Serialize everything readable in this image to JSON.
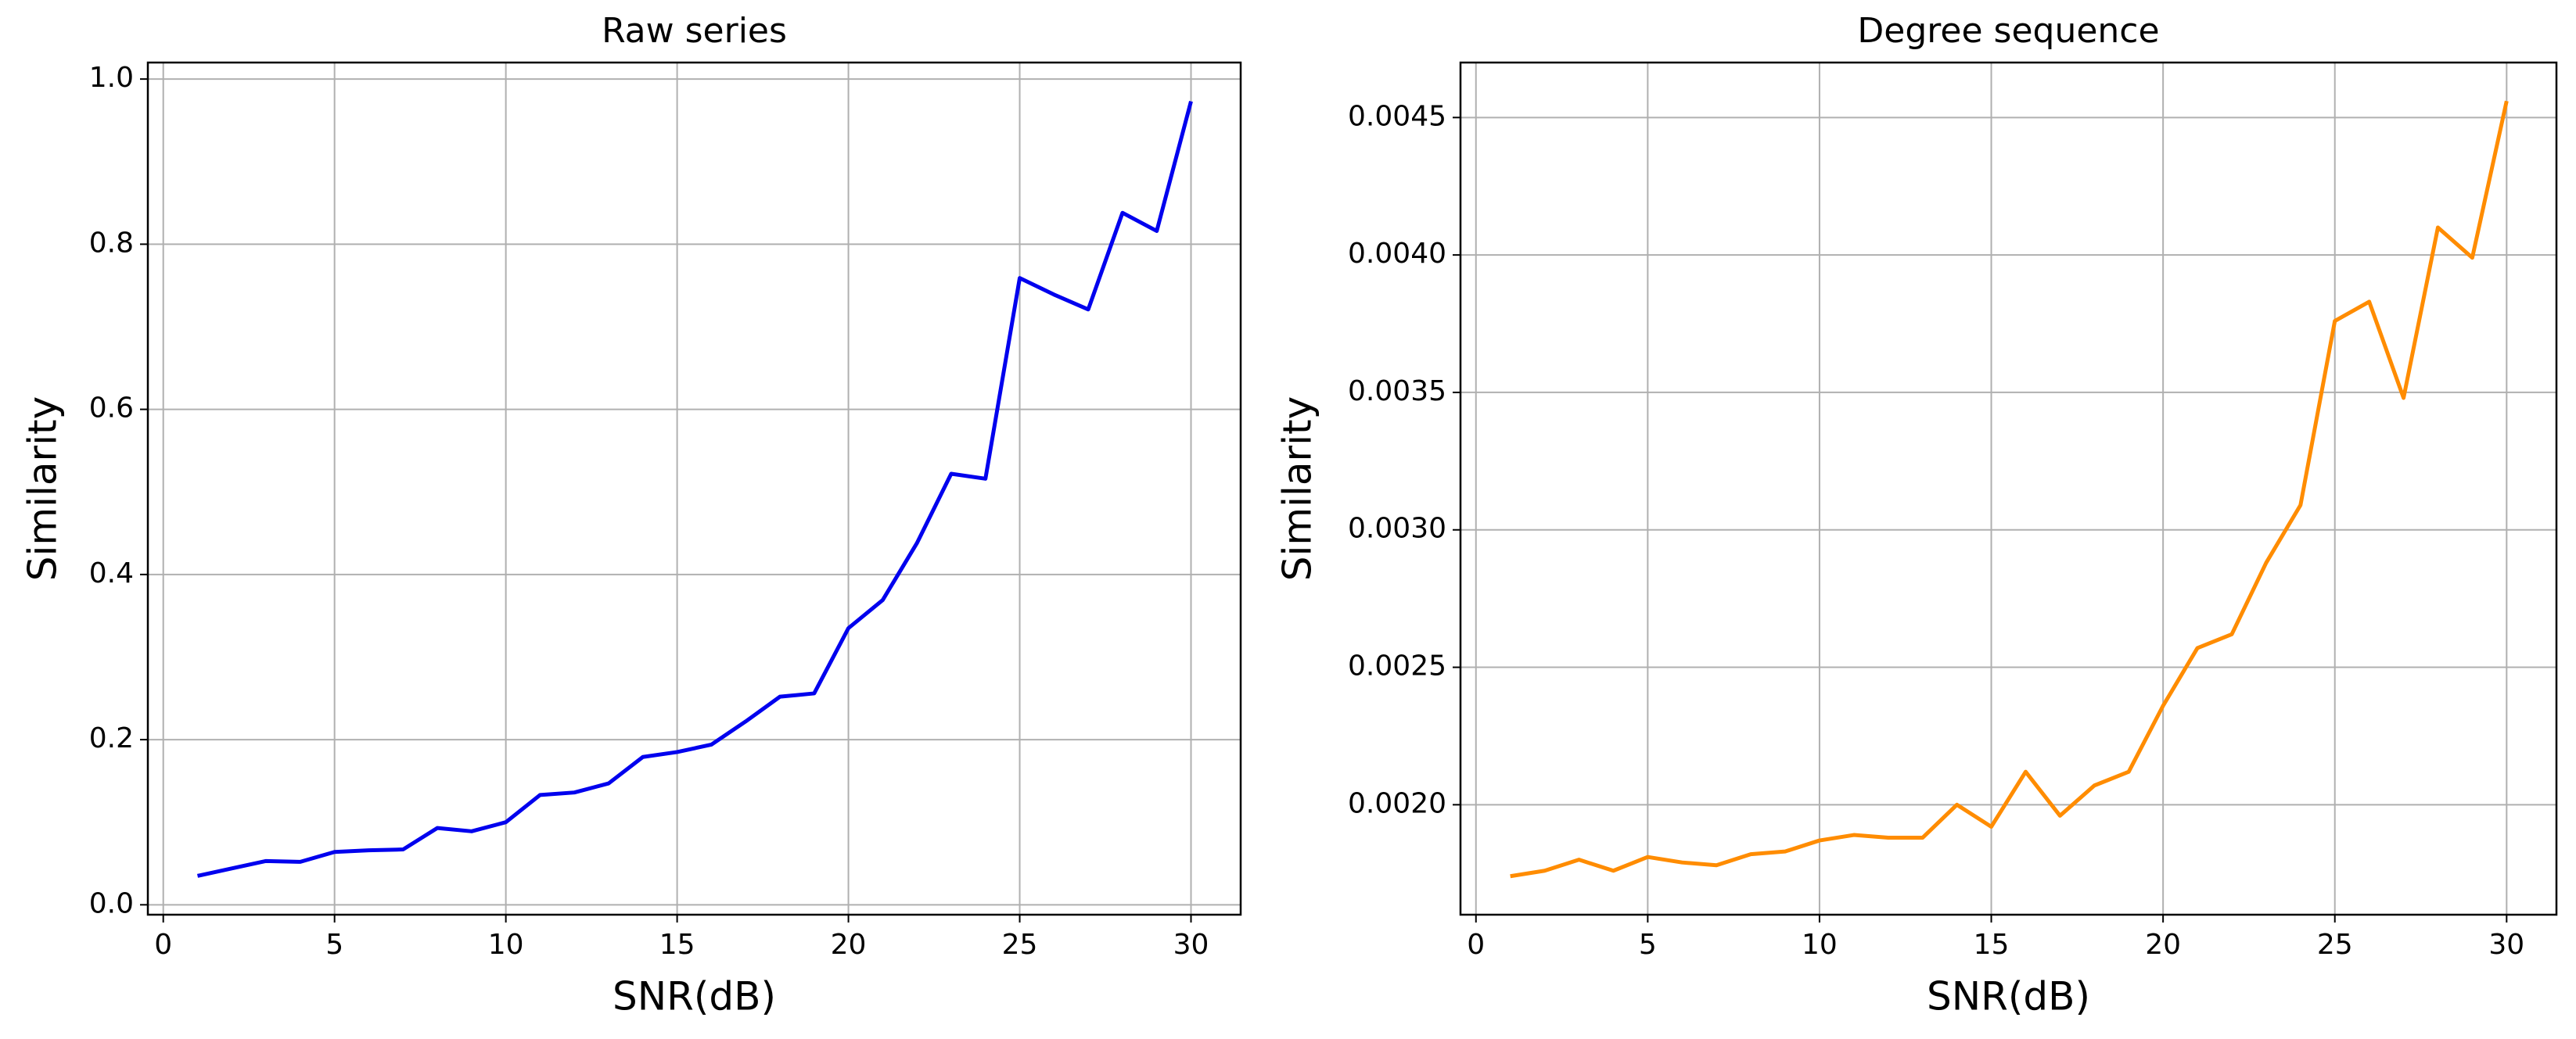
{
  "chart_data": [
    {
      "type": "line",
      "title": "Raw series",
      "x_label": "SNR(dB)",
      "y_label": "Similarity",
      "color": "#0000ee",
      "grid": true,
      "x": [
        1,
        2,
        3,
        4,
        5,
        6,
        7,
        8,
        9,
        10,
        11,
        12,
        13,
        14,
        15,
        16,
        17,
        18,
        19,
        20,
        21,
        22,
        23,
        24,
        25,
        26,
        27,
        28,
        29,
        30
      ],
      "values": [
        0.035,
        0.044,
        0.053,
        0.052,
        0.064,
        0.066,
        0.067,
        0.093,
        0.089,
        0.1,
        0.133,
        0.136,
        0.147,
        0.179,
        0.185,
        0.194,
        0.222,
        0.252,
        0.256,
        0.335,
        0.369,
        0.438,
        0.522,
        0.516,
        0.759,
        0.739,
        0.721,
        0.838,
        0.816,
        0.973
      ],
      "xlim": [
        -0.45,
        31.45
      ],
      "xticks": [
        0,
        5,
        10,
        15,
        20,
        25,
        30
      ],
      "ylim": [
        -0.012,
        1.02
      ],
      "yticks": [
        {
          "value": 0,
          "label": "0.0"
        },
        {
          "value": 0.2,
          "label": "0.2"
        },
        {
          "value": 0.4,
          "label": "0.4"
        },
        {
          "value": 0.6,
          "label": "0.6"
        },
        {
          "value": 0.8,
          "label": "0.8"
        },
        {
          "value": 1,
          "label": "1.0"
        }
      ]
    },
    {
      "type": "line",
      "title": "Degree sequence",
      "x_label": "SNR(dB)",
      "y_label": "Similarity",
      "color": "#ff8c00",
      "grid": true,
      "x": [
        1,
        2,
        3,
        4,
        5,
        6,
        7,
        8,
        9,
        10,
        11,
        12,
        13,
        14,
        15,
        16,
        17,
        18,
        19,
        20,
        21,
        22,
        23,
        24,
        25,
        26,
        27,
        28,
        29,
        30
      ],
      "values": [
        0.00174,
        0.00176,
        0.0018,
        0.00176,
        0.00181,
        0.00179,
        0.00178,
        0.00182,
        0.00183,
        0.00187,
        0.00189,
        0.00188,
        0.00188,
        0.002,
        0.00192,
        0.00212,
        0.00196,
        0.00207,
        0.00212,
        0.00236,
        0.00257,
        0.00262,
        0.00288,
        0.00309,
        0.00376,
        0.00383,
        0.00348,
        0.0041,
        0.00399,
        0.00456
      ],
      "xlim": [
        -0.45,
        31.45
      ],
      "xticks": [
        0,
        5,
        10,
        15,
        20,
        25,
        30
      ],
      "ylim": [
        0.0016,
        0.0047
      ],
      "yticks": [
        {
          "value": 0.002,
          "label": "0.0020"
        },
        {
          "value": 0.0025,
          "label": "0.0025"
        },
        {
          "value": 0.003,
          "label": "0.0030"
        },
        {
          "value": 0.0035,
          "label": "0.0035"
        },
        {
          "value": 0.004,
          "label": "0.0040"
        },
        {
          "value": 0.0045,
          "label": "0.0045"
        }
      ]
    }
  ]
}
